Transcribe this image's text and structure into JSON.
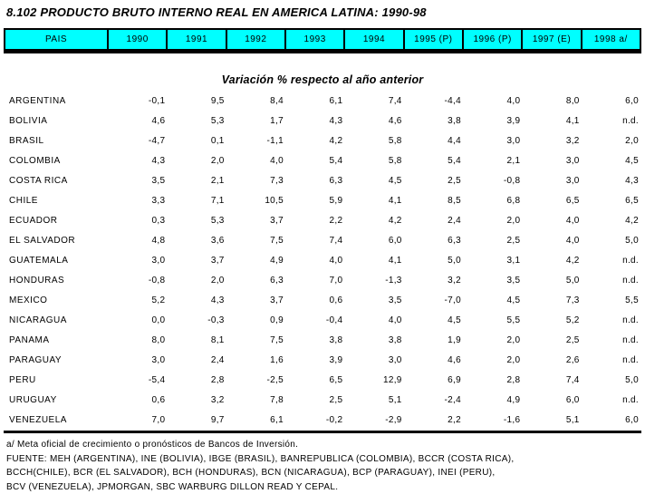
{
  "title": "8.102  PRODUCTO BRUTO INTERNO REAL EN AMERICA LATINA: 1990-98",
  "subtitle": "Variación % respecto al año anterior",
  "colors": {
    "header_bg": "#00ffff",
    "border": "#000000",
    "text": "#000000",
    "page_bg": "#ffffff"
  },
  "table": {
    "columns": [
      "PAIS",
      "1990",
      "1991",
      "1992",
      "1993",
      "1994",
      "1995 (P)",
      "1996 (P)",
      "1997 (E)",
      "1998 a/"
    ],
    "rows": [
      {
        "country": "ARGENTINA",
        "values": [
          "-0,1",
          "9,5",
          "8,4",
          "6,1",
          "7,4",
          "-4,4",
          "4,0",
          "8,0",
          "6,0"
        ]
      },
      {
        "country": "BOLIVIA",
        "values": [
          "4,6",
          "5,3",
          "1,7",
          "4,3",
          "4,6",
          "3,8",
          "3,9",
          "4,1",
          "n.d."
        ]
      },
      {
        "country": "BRASIL",
        "values": [
          "-4,7",
          "0,1",
          "-1,1",
          "4,2",
          "5,8",
          "4,4",
          "3,0",
          "3,2",
          "2,0"
        ]
      },
      {
        "country": "COLOMBIA",
        "values": [
          "4,3",
          "2,0",
          "4,0",
          "5,4",
          "5,8",
          "5,4",
          "2,1",
          "3,0",
          "4,5"
        ]
      },
      {
        "country": "COSTA RICA",
        "values": [
          "3,5",
          "2,1",
          "7,3",
          "6,3",
          "4,5",
          "2,5",
          "-0,8",
          "3,0",
          "4,3"
        ]
      },
      {
        "country": "CHILE",
        "values": [
          "3,3",
          "7,1",
          "10,5",
          "5,9",
          "4,1",
          "8,5",
          "6,8",
          "6,5",
          "6,5"
        ]
      },
      {
        "country": "ECUADOR",
        "values": [
          "0,3",
          "5,3",
          "3,7",
          "2,2",
          "4,2",
          "2,4",
          "2,0",
          "4,0",
          "4,2"
        ]
      },
      {
        "country": "EL SALVADOR",
        "values": [
          "4,8",
          "3,6",
          "7,5",
          "7,4",
          "6,0",
          "6,3",
          "2,5",
          "4,0",
          "5,0"
        ]
      },
      {
        "country": "GUATEMALA",
        "values": [
          "3,0",
          "3,7",
          "4,9",
          "4,0",
          "4,1",
          "5,0",
          "3,1",
          "4,2",
          "n.d."
        ]
      },
      {
        "country": "HONDURAS",
        "values": [
          "-0,8",
          "2,0",
          "6,3",
          "7,0",
          "-1,3",
          "3,2",
          "3,5",
          "5,0",
          "n.d."
        ]
      },
      {
        "country": "MEXICO",
        "values": [
          "5,2",
          "4,3",
          "3,7",
          "0,6",
          "3,5",
          "-7,0",
          "4,5",
          "7,3",
          "5,5"
        ]
      },
      {
        "country": "NICARAGUA",
        "values": [
          "0,0",
          "-0,3",
          "0,9",
          "-0,4",
          "4,0",
          "4,5",
          "5,5",
          "5,2",
          "n.d."
        ]
      },
      {
        "country": "PANAMA",
        "values": [
          "8,0",
          "8,1",
          "7,5",
          "3,8",
          "3,8",
          "1,9",
          "2,0",
          "2,5",
          "n.d."
        ]
      },
      {
        "country": "PARAGUAY",
        "values": [
          "3,0",
          "2,4",
          "1,6",
          "3,9",
          "3,0",
          "4,6",
          "2,0",
          "2,6",
          "n.d."
        ]
      },
      {
        "country": "PERU",
        "values": [
          "-5,4",
          "2,8",
          "-2,5",
          "6,5",
          "12,9",
          "6,9",
          "2,8",
          "7,4",
          "5,0"
        ]
      },
      {
        "country": "URUGUAY",
        "values": [
          "0,6",
          "3,2",
          "7,8",
          "2,5",
          "5,1",
          "-2,4",
          "4,9",
          "6,0",
          "n.d."
        ]
      },
      {
        "country": "VENEZUELA",
        "values": [
          "7,0",
          "9,7",
          "6,1",
          "-0,2",
          "-2,9",
          "2,2",
          "-1,6",
          "5,1",
          "6,0"
        ]
      }
    ]
  },
  "footnotes": [
    "a/ Meta oficial de crecimiento o pronósticos de Bancos de Inversión.",
    "FUENTE: MEH (ARGENTINA), INE (BOLIVIA), IBGE (BRASIL), BANREPUBLICA (COLOMBIA), BCCR (COSTA RICA),",
    "BCCH(CHILE), BCR (EL SALVADOR),  BCH (HONDURAS), BCN (NICARAGUA), BCP (PARAGUAY), INEI (PERU),",
    "BCV (VENEZUELA), JPMORGAN, SBC WARBURG DILLON READ Y CEPAL."
  ]
}
